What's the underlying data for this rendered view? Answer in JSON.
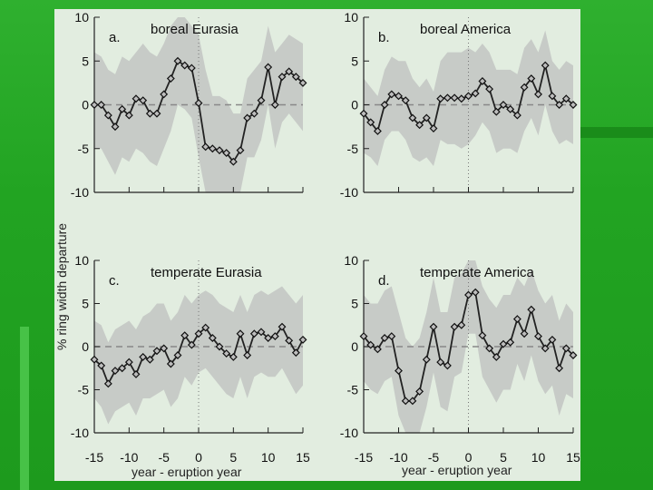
{
  "colors": {
    "slide_green": "#22a422",
    "figure_background": "#e2ede0",
    "confidence_band": "#c7cbc7",
    "series_line": "#222222",
    "zero_line": "#888888"
  },
  "y_axis_title": "% ring width departure",
  "x_axis_title": "year - eruption year",
  "chart_data": [
    {
      "type": "line",
      "letter": "a.",
      "title": "boreal Eurasia",
      "xlim": [
        -15,
        15
      ],
      "ylim": [
        -10,
        10
      ],
      "x_ticks": [
        "-15",
        "-10",
        "-5",
        "0",
        "5",
        "10",
        "15"
      ],
      "y_ticks": [
        "10",
        "5",
        "0",
        "-5",
        "-10"
      ],
      "x": [
        -15,
        -14,
        -13,
        -12,
        -11,
        -10,
        -9,
        -8,
        -7,
        -6,
        -5,
        -4,
        -3,
        -2,
        -1,
        0,
        1,
        2,
        3,
        4,
        5,
        6,
        7,
        8,
        9,
        10,
        11,
        12,
        13,
        14,
        15
      ],
      "values": [
        0,
        0,
        -1.2,
        -2.5,
        -0.5,
        -1.2,
        0.7,
        0.5,
        -1,
        -1,
        1.2,
        3,
        5,
        4.5,
        4.2,
        0.2,
        -4.8,
        -5,
        -5.2,
        -5.5,
        -6.5,
        -5.2,
        -1.5,
        -1,
        0.5,
        4.3,
        0,
        3.2,
        3.8,
        3.2,
        2.5
      ],
      "band_upper": [
        6,
        5.5,
        4,
        3.5,
        5.5,
        5,
        6,
        7,
        6,
        5.5,
        7,
        9,
        10,
        10,
        9,
        8,
        4,
        1,
        1,
        0.5,
        -1,
        -1,
        3,
        4,
        5,
        9,
        6,
        7,
        8,
        7.5,
        7
      ],
      "band_lower": [
        -5,
        -5,
        -6.5,
        -8,
        -6,
        -6.5,
        -5,
        -5.5,
        -6.5,
        -7,
        -5,
        -3,
        0,
        -0.5,
        -1.5,
        -6,
        -10,
        -10,
        -10,
        -10,
        -10,
        -10,
        -6,
        -6,
        -4,
        0,
        -5,
        -2,
        -1,
        -2,
        -3
      ]
    },
    {
      "type": "line",
      "letter": "b.",
      "title": "boreal America",
      "xlim": [
        -15,
        15
      ],
      "ylim": [
        -10,
        10
      ],
      "x_ticks": [
        "-15",
        "-10",
        "-5",
        "0",
        "5",
        "10",
        "15"
      ],
      "y_ticks": [
        "10",
        "5",
        "0",
        "-5",
        "-10"
      ],
      "x": [
        -15,
        -14,
        -13,
        -12,
        -11,
        -10,
        -9,
        -8,
        -7,
        -6,
        -5,
        -4,
        -3,
        -2,
        -1,
        0,
        1,
        2,
        3,
        4,
        5,
        6,
        7,
        8,
        9,
        10,
        11,
        12,
        13,
        14,
        15
      ],
      "values": [
        -1,
        -2,
        -3,
        0,
        1.2,
        1,
        0.5,
        -1.5,
        -2.3,
        -1.5,
        -2.7,
        0.7,
        0.8,
        0.8,
        0.7,
        1,
        1.3,
        2.7,
        1.8,
        -0.8,
        0,
        -0.5,
        -1.2,
        2,
        3,
        1.2,
        4.5,
        1,
        0,
        0.7,
        0
      ],
      "band_upper": [
        3,
        2,
        1,
        4,
        5.5,
        5,
        5,
        3,
        2,
        3,
        1.5,
        5,
        6,
        6,
        6,
        6.5,
        6,
        7,
        6,
        4,
        4,
        4,
        3.5,
        6.5,
        7.5,
        6,
        8.5,
        5,
        4,
        5,
        4.5
      ],
      "band_lower": [
        -5.5,
        -6,
        -7,
        -4,
        -3,
        -3,
        -4,
        -6,
        -6.5,
        -6,
        -7,
        -4,
        -4.5,
        -4.5,
        -5,
        -4.5,
        -3.5,
        -2,
        -3,
        -5.5,
        -5,
        -5,
        -5.5,
        -3,
        -1.5,
        -3.5,
        0,
        -3,
        -4.5,
        -4,
        -4.5
      ]
    },
    {
      "type": "line",
      "letter": "c.",
      "title": "temperate Eurasia",
      "xlim": [
        -15,
        15
      ],
      "ylim": [
        -10,
        10
      ],
      "x_ticks": [
        "-15",
        "-10",
        "-5",
        "0",
        "5",
        "10",
        "15"
      ],
      "y_ticks": [
        "10",
        "5",
        "0",
        "-5",
        "-10"
      ],
      "x": [
        -15,
        -14,
        -13,
        -12,
        -11,
        -10,
        -9,
        -8,
        -7,
        -6,
        -5,
        -4,
        -3,
        -2,
        -1,
        0,
        1,
        2,
        3,
        4,
        5,
        6,
        7,
        8,
        9,
        10,
        11,
        12,
        13,
        14,
        15
      ],
      "values": [
        -1.5,
        -2.2,
        -4.3,
        -2.8,
        -2.5,
        -1.8,
        -3.2,
        -1.2,
        -1.5,
        -0.5,
        -0.2,
        -2,
        -1,
        1.3,
        0.2,
        1.5,
        2.2,
        1,
        0,
        -0.8,
        -1.2,
        1.5,
        -1,
        1.5,
        1.7,
        1,
        1.2,
        2.3,
        0.7,
        -0.7,
        0.8
      ],
      "band_upper": [
        3,
        2.5,
        0.5,
        2,
        2.5,
        3,
        2,
        3.5,
        4,
        5,
        5,
        3,
        4,
        6,
        5,
        6,
        6.5,
        6,
        5,
        4.5,
        4,
        6,
        4,
        6,
        6.5,
        6,
        6.5,
        7,
        6,
        5,
        6
      ],
      "band_lower": [
        -6,
        -7,
        -9,
        -7.5,
        -7,
        -6.5,
        -8,
        -6,
        -6,
        -5.5,
        -5,
        -7,
        -6,
        -3.5,
        -4.5,
        -3,
        -2.5,
        -3.5,
        -4.5,
        -5.5,
        -6,
        -3.5,
        -6,
        -3.5,
        -3,
        -3.5,
        -3.5,
        -2.5,
        -4,
        -5.5,
        -4.5
      ]
    },
    {
      "type": "line",
      "letter": "d.",
      "title": "temperate America",
      "xlim": [
        -15,
        15
      ],
      "ylim": [
        -10,
        10
      ],
      "x_ticks": [
        "-15",
        "-10",
        "-5",
        "0",
        "5",
        "10",
        "15"
      ],
      "y_ticks": [
        "10",
        "5",
        "0",
        "-5",
        "-10"
      ],
      "x": [
        -15,
        -14,
        -13,
        -12,
        -11,
        -10,
        -9,
        -8,
        -7,
        -6,
        -5,
        -4,
        -3,
        -2,
        -1,
        0,
        1,
        2,
        3,
        4,
        5,
        6,
        7,
        8,
        9,
        10,
        11,
        12,
        13,
        14,
        15
      ],
      "values": [
        1.2,
        0.2,
        -0.3,
        1,
        1.2,
        -2.8,
        -6.3,
        -6.3,
        -5.2,
        -1.5,
        2.3,
        -1.8,
        -2.2,
        2.3,
        2.5,
        6,
        6.3,
        1.3,
        -0.2,
        -1.2,
        0.3,
        0.5,
        3.2,
        1.5,
        4.3,
        1.2,
        -0.2,
        0.8,
        -2.5,
        -0.2,
        -1
      ],
      "band_upper": [
        6,
        5,
        5,
        6.5,
        7,
        4,
        1,
        0,
        1,
        4,
        8,
        4,
        4,
        8,
        8.5,
        10,
        10,
        7,
        5.5,
        4.5,
        6,
        6,
        8,
        7,
        9,
        6.5,
        5,
        6,
        3,
        5,
        4
      ],
      "band_lower": [
        -4,
        -5,
        -5.5,
        -4,
        -3.5,
        -8,
        -10,
        -11,
        -10,
        -7,
        -3,
        -7,
        -7.5,
        -3.5,
        -3,
        1.5,
        1.5,
        -3.5,
        -5,
        -6.5,
        -5,
        -5,
        -2,
        -4,
        -1,
        -4,
        -5.5,
        -4.5,
        -8,
        -5.5,
        -6
      ]
    }
  ]
}
